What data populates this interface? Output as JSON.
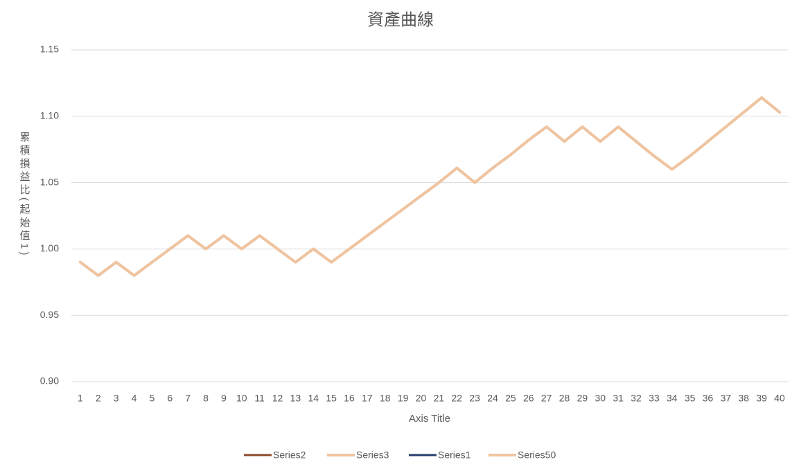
{
  "chart_data": {
    "type": "line",
    "title": "資產曲線",
    "x_label": "Axis Title",
    "y_label": "累積損益比(起始值1)",
    "categories": [
      "1",
      "2",
      "3",
      "4",
      "5",
      "6",
      "7",
      "8",
      "9",
      "10",
      "11",
      "12",
      "13",
      "14",
      "15",
      "16",
      "17",
      "18",
      "19",
      "20",
      "21",
      "22",
      "23",
      "24",
      "25",
      "26",
      "27",
      "28",
      "29",
      "30",
      "31",
      "32",
      "33",
      "34",
      "35",
      "36",
      "37",
      "38",
      "39",
      "40"
    ],
    "series": [
      {
        "name": "Series2",
        "color": "#8b4a2a",
        "values": [
          null,
          null,
          null,
          null,
          null,
          null,
          null,
          null,
          null,
          null,
          null,
          null,
          null,
          null,
          null,
          null,
          null,
          null,
          null,
          null,
          null,
          null,
          null,
          null,
          null,
          null,
          null,
          null,
          null,
          null,
          null,
          null,
          null,
          null,
          null,
          null,
          null,
          null,
          null,
          null
        ]
      },
      {
        "name": "Series3",
        "color": "#efc4a0",
        "values": [
          0.99,
          0.98,
          0.99,
          0.98,
          0.99,
          1.0,
          1.01,
          1.0,
          1.01,
          1.0,
          1.01,
          1.0,
          0.99,
          1.0,
          0.99,
          1.0,
          1.01,
          1.02,
          1.03,
          1.04,
          1.05,
          1.061,
          1.05,
          1.061,
          1.071,
          1.082,
          1.092,
          1.081,
          1.092,
          1.081,
          1.092,
          1.081,
          1.07,
          1.06,
          1.07,
          1.081,
          1.092,
          1.103,
          1.114,
          1.103
        ]
      },
      {
        "name": "Series1",
        "color": "#263d6b",
        "values": [
          null,
          null,
          null,
          null,
          null,
          null,
          null,
          null,
          null,
          null,
          null,
          null,
          null,
          null,
          null,
          null,
          null,
          null,
          null,
          null,
          null,
          null,
          null,
          null,
          null,
          null,
          null,
          null,
          null,
          null,
          null,
          null,
          null,
          null,
          null,
          null,
          null,
          null,
          null,
          null
        ]
      },
      {
        "name": "Series50",
        "color": "#efc4a0",
        "values": [
          0.99,
          0.98,
          0.99,
          0.98,
          0.99,
          1.0,
          1.01,
          1.0,
          1.01,
          1.0,
          1.01,
          1.0,
          0.99,
          1.0,
          0.99,
          1.0,
          1.01,
          1.02,
          1.03,
          1.04,
          1.05,
          1.061,
          1.05,
          1.061,
          1.071,
          1.082,
          1.092,
          1.081,
          1.092,
          1.081,
          1.092,
          1.081,
          1.07,
          1.06,
          1.07,
          1.081,
          1.092,
          1.103,
          1.114,
          1.103
        ]
      }
    ],
    "ylim": [
      0.9,
      1.15
    ],
    "yticks": [
      {
        "value": 0.9,
        "label": "0.90"
      },
      0.95,
      {
        "value": 1.0,
        "label": "1.00"
      },
      1.05,
      {
        "value": 1.1,
        "label": "1.10"
      },
      1.15
    ],
    "grid": true,
    "legend": "bottom"
  }
}
